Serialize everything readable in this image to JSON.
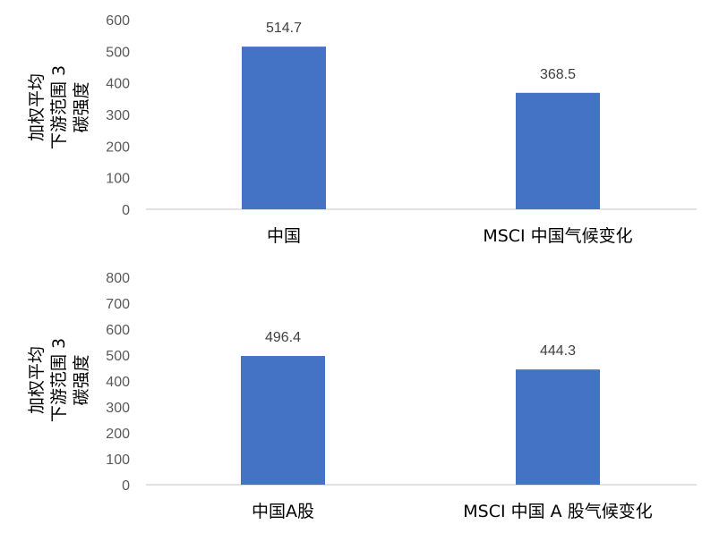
{
  "chart_data": [
    {
      "type": "bar",
      "ylabel_lines": [
        "加权平均",
        "下游范围 3",
        "碳强度"
      ],
      "categories": [
        "中国",
        "MSCI 中国气候变化"
      ],
      "values": [
        514.7,
        368.5
      ],
      "data_labels": [
        "514.7",
        "368.5"
      ],
      "ylim": [
        0,
        600
      ],
      "yticks": [
        "0",
        "100",
        "200",
        "300",
        "400",
        "500",
        "600"
      ],
      "grid": false,
      "bar_color": "#4472C4"
    },
    {
      "type": "bar",
      "ylabel_lines": [
        "加权平均",
        "下游范围 3",
        "碳强度"
      ],
      "categories": [
        "中国A股",
        "MSCI 中国 A 股气候变化"
      ],
      "values": [
        496.4,
        444.3
      ],
      "data_labels": [
        "496.4",
        "444.3"
      ],
      "ylim": [
        0,
        800
      ],
      "yticks": [
        "0",
        "100",
        "200",
        "300",
        "400",
        "500",
        "600",
        "700",
        "800"
      ],
      "grid": false,
      "bar_color": "#4472C4"
    }
  ]
}
